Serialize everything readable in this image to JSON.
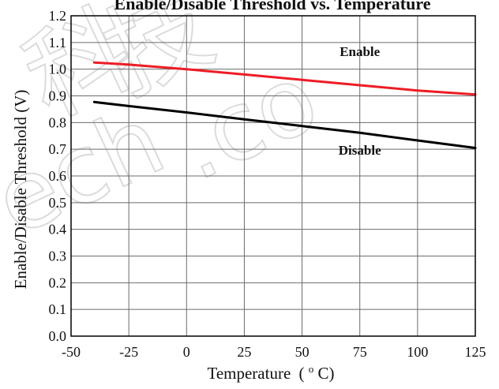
{
  "chart_data": {
    "type": "line",
    "title": "Enable/Disable Threshold vs. Temperature",
    "xlabel": "Temperature",
    "xlabel_unit_prefix": "(",
    "xlabel_unit_deg": "o",
    "xlabel_unit_suffix": "C)",
    "ylabel": "Enable/Disable Threshold (V)",
    "xlim": [
      -50,
      125
    ],
    "ylim": [
      0.0,
      1.2
    ],
    "x_ticks": [
      -50,
      -25,
      0,
      25,
      50,
      75,
      100,
      125
    ],
    "y_ticks": [
      "0.0",
      "0.1",
      "0.2",
      "0.3",
      "0.4",
      "0.5",
      "0.6",
      "0.7",
      "0.8",
      "0.9",
      "1.0",
      "1.1",
      "1.2"
    ],
    "grid": true,
    "series": [
      {
        "name": "Enable",
        "color": "#ee1c24",
        "x": [
          -40,
          -25,
          0,
          25,
          50,
          75,
          100,
          125
        ],
        "y": [
          1.025,
          1.017,
          1.0,
          0.98,
          0.96,
          0.94,
          0.92,
          0.905
        ]
      },
      {
        "name": "Disable",
        "color": "#000000",
        "x": [
          -40,
          -25,
          0,
          25,
          50,
          75,
          100,
          125
        ],
        "y": [
          0.877,
          0.862,
          0.838,
          0.812,
          0.787,
          0.762,
          0.733,
          0.705
        ]
      }
    ]
  }
}
